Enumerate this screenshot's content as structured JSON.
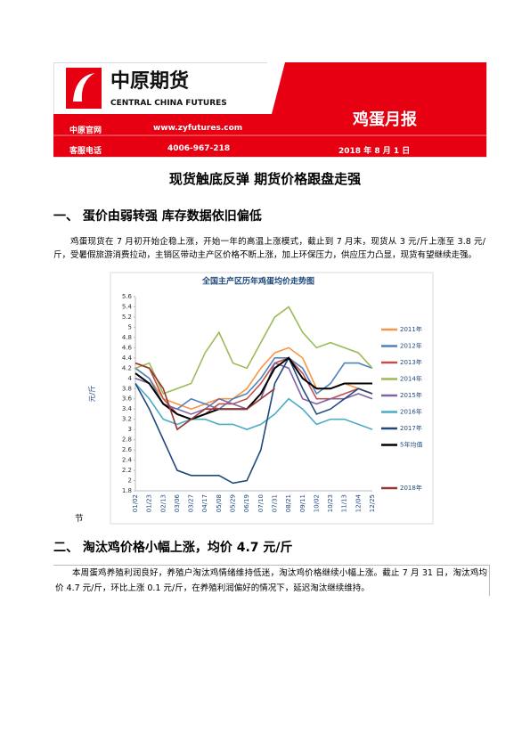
{
  "header": {
    "logo_cn": "中原期货",
    "logo_en": "CENTRAL CHINA FUTURES",
    "report": "鸡蛋月报",
    "website_label": "中原官网",
    "website": "www.zyfutures.com",
    "phone_label": "客服电话",
    "phone": "4006-967-218",
    "date": "2018 年 8 月 1 日"
  },
  "title": "现货触底反弹 期货价格跟盘走强",
  "sections": [
    {
      "heading": "一、 蛋价由弱转强 库存数据依旧偏低",
      "paragraph": "鸡蛋现货在 7 月初开始企稳上涨，开始一年的高温上涨模式，截止到 7 月末，现货从 3 元/斤上涨至 3.8 元/斤，受暑假旅游消费拉动，主销区带动主产区价格不断上涨，加上环保压力，供应压力凸显，现货有望继续走强。"
    },
    {
      "heading": "二、 淘汰鸡价格小幅上涨，均价 4.7 元/斤",
      "paragraph": "本周蛋鸡养殖利润良好，养殖户淘汰鸡情绪维持低迷，淘汰鸡价格继续小幅上涨。截止 7 月 31 日，淘汰鸡均价 4.7 元/斤，环比上涨 0.1 元/斤，在养殖利润偏好的情况下，延迟淘汰继续维持。"
    }
  ],
  "chart_note": "节",
  "chart_data": {
    "type": "line",
    "title": "全国主产区历年鸡蛋均价走势图",
    "ylabel": "元/斤",
    "categories": [
      "01/02",
      "01/23",
      "02/13",
      "03/06",
      "03/27",
      "04/17",
      "05/08",
      "05/29",
      "06/19",
      "07/10",
      "07/31",
      "08/21",
      "09/11",
      "10/02",
      "10/23",
      "11/13",
      "12/04",
      "12/25"
    ],
    "ylim": [
      1.8,
      5.6
    ],
    "yticks": [
      1.8,
      2,
      2.2,
      2.4,
      2.6,
      2.8,
      3,
      3.2,
      3.4,
      3.6,
      3.8,
      4,
      4.2,
      4.4,
      4.6,
      4.8,
      5,
      5.2,
      5.4,
      5.6
    ],
    "series": [
      {
        "name": "2011年",
        "color": "#f79646",
        "values": [
          4.2,
          4.0,
          3.6,
          3.5,
          3.4,
          3.5,
          3.6,
          3.6,
          3.8,
          4.2,
          4.5,
          4.6,
          4.4,
          3.8,
          3.8,
          3.9,
          3.8,
          3.7
        ]
      },
      {
        "name": "2012年",
        "color": "#4f81bd",
        "values": [
          4.2,
          4.0,
          3.5,
          3.4,
          3.6,
          3.5,
          3.4,
          3.6,
          3.7,
          4.0,
          4.4,
          4.4,
          4.2,
          3.7,
          3.9,
          4.3,
          4.3,
          4.2
        ]
      },
      {
        "name": "2013年",
        "color": "#c0504d",
        "values": [
          4.3,
          4.2,
          3.6,
          3.3,
          3.2,
          3.3,
          3.5,
          3.5,
          3.6,
          3.9,
          4.3,
          4.4,
          4.1,
          3.6,
          3.6,
          3.7,
          3.8,
          3.7
        ]
      },
      {
        "name": "2014年",
        "color": "#9bbb59",
        "values": [
          4.2,
          4.3,
          3.7,
          3.8,
          3.9,
          4.5,
          4.9,
          4.3,
          4.2,
          4.7,
          5.2,
          5.4,
          4.9,
          4.6,
          4.7,
          4.6,
          4.5,
          4.2
        ]
      },
      {
        "name": "2015年",
        "color": "#8064a2",
        "values": [
          4.0,
          3.9,
          3.5,
          3.4,
          3.3,
          3.4,
          3.6,
          3.5,
          3.4,
          3.6,
          4.3,
          4.2,
          3.6,
          3.5,
          3.6,
          3.6,
          3.7,
          3.6
        ]
      },
      {
        "name": "2016年",
        "color": "#4bacc6",
        "values": [
          3.9,
          3.6,
          3.2,
          3.1,
          3.2,
          3.2,
          3.1,
          3.1,
          3.0,
          3.1,
          3.3,
          3.6,
          3.4,
          3.1,
          3.2,
          3.2,
          3.1,
          3.0
        ]
      },
      {
        "name": "2017年",
        "color": "#1f497d",
        "values": [
          3.9,
          3.4,
          2.8,
          2.2,
          2.1,
          2.1,
          2.1,
          1.95,
          2.0,
          2.6,
          3.9,
          4.4,
          3.8,
          3.3,
          3.4,
          3.6,
          3.8,
          3.7
        ]
      },
      {
        "name": "5年均值",
        "color": "#000000",
        "values": [
          4.1,
          3.9,
          3.5,
          3.3,
          3.2,
          3.3,
          3.4,
          3.4,
          3.4,
          3.7,
          4.2,
          4.4,
          4.0,
          3.8,
          3.8,
          3.9,
          3.9,
          3.9
        ]
      },
      {
        "name": "2018年",
        "color": "#953735",
        "values": [
          4.3,
          4.2,
          3.8,
          3.0,
          3.2,
          3.4,
          3.4,
          3.4,
          3.4,
          3.6,
          3.8,
          null,
          null,
          null,
          null,
          null,
          null,
          null
        ]
      }
    ]
  }
}
